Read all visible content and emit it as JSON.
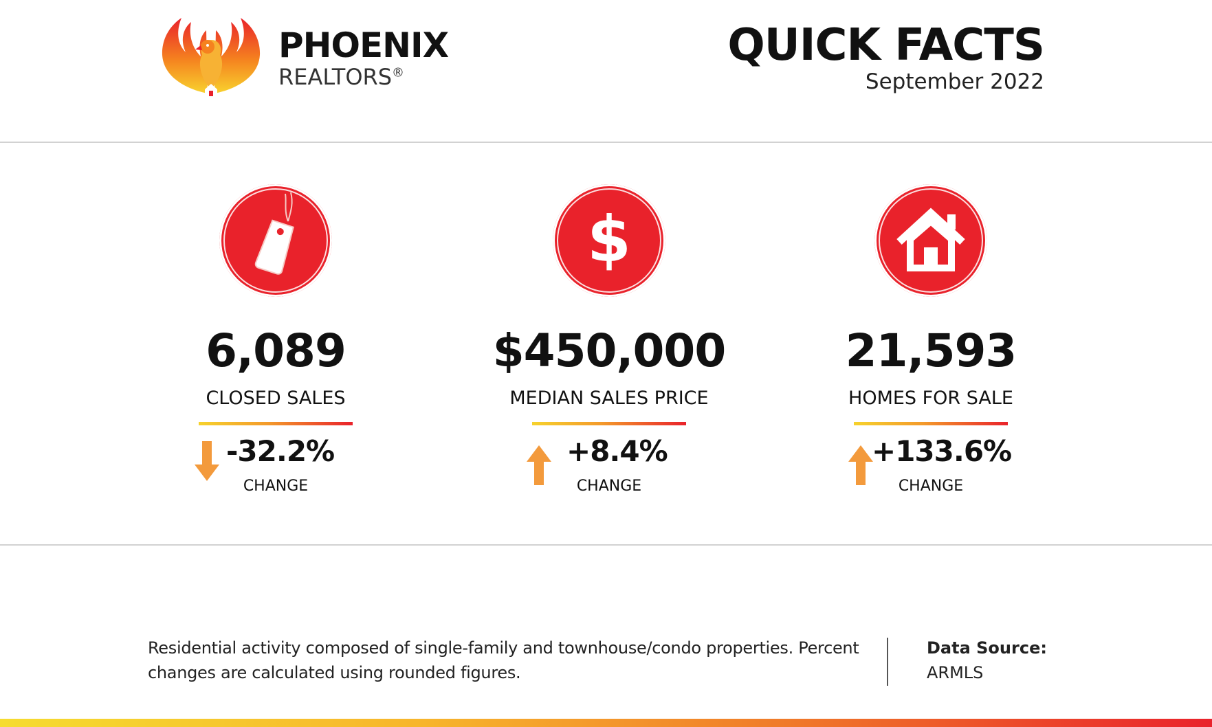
{
  "header": {
    "brand_name": "PHOENIX",
    "brand_sub": "REALTORS",
    "brand_reg": "®",
    "title": "QUICK FACTS",
    "date": "September 2022"
  },
  "stats": [
    {
      "icon": "price-tag-icon",
      "value": "6,089",
      "label": "CLOSED SALES",
      "change": "-32.2%",
      "direction": "down",
      "change_label": "CHANGE"
    },
    {
      "icon": "dollar-sign-icon",
      "value": "$450,000",
      "label": "MEDIAN SALES PRICE",
      "change": "+8.4%",
      "direction": "up",
      "change_label": "CHANGE"
    },
    {
      "icon": "house-icon",
      "value": "21,593",
      "label": "HOMES FOR SALE",
      "change": "+133.6%",
      "direction": "up",
      "change_label": "CHANGE"
    }
  ],
  "footer": {
    "note_line1": "Residential activity composed of single-family and townhouse/condo properties. Percent",
    "note_line2": "changes are calculated using rounded figures.",
    "source_label": "Data Source:",
    "source_value": "ARMLS"
  },
  "colors": {
    "accent_red": "#e9222b",
    "arrow_orange": "#f39a3c",
    "gradient_yellow": "#f6d22c"
  }
}
